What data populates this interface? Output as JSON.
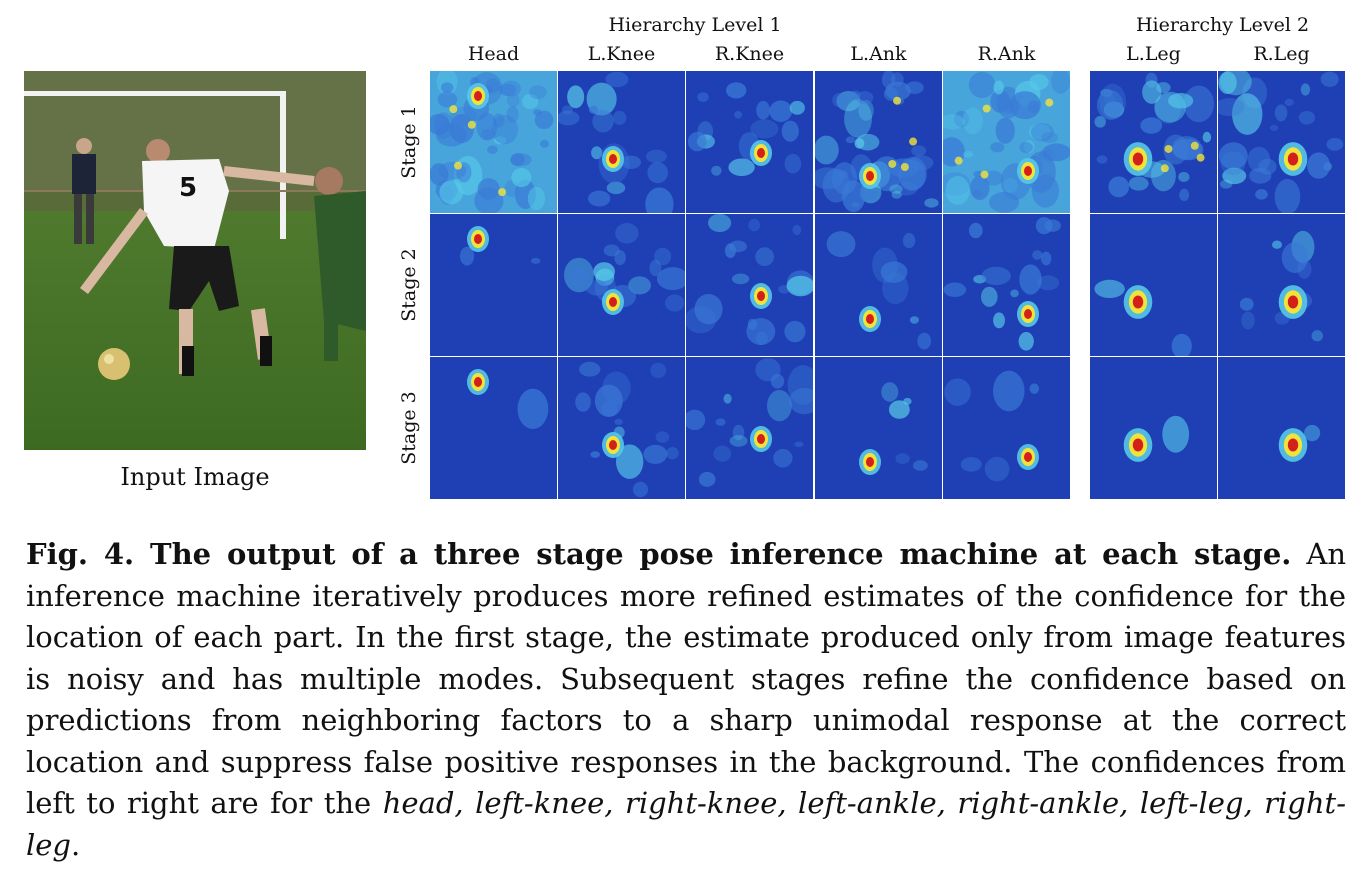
{
  "figure": {
    "input_caption": "Input Image",
    "hierarchy_levels": [
      "Hierarchy Level 1",
      "Hierarchy Level 2"
    ],
    "columns": [
      "Head",
      "L.Knee",
      "R.Knee",
      "L.Ank",
      "R.Ank",
      "L.Leg",
      "R.Leg"
    ],
    "rows": [
      "Stage 1",
      "Stage 2",
      "Stage 3"
    ],
    "colors": {
      "background": "#1f3fb5",
      "low": "#3a7ad6",
      "mid": "#56c8e8",
      "warm": "#f2e33a",
      "hot": "#d3201b"
    }
  },
  "caption": {
    "title": "Fig. 4. The output of a three stage pose inference machine at each stage.",
    "body": "An inference machine iteratively produces more refined estimates of the confidence for the location of each part. In the first stage, the estimate produced only from image features is noisy and has multiple modes. Subsequent stages refine the confidence based on predictions from neighboring factors to a sharp unimodal response at the correct location and suppress false positive responses in the background. The confidences from left to right are for the",
    "parts_list": "head, left-knee, right-knee, left-ankle, right-ankle, left-leg, right-leg",
    "end": "."
  }
}
